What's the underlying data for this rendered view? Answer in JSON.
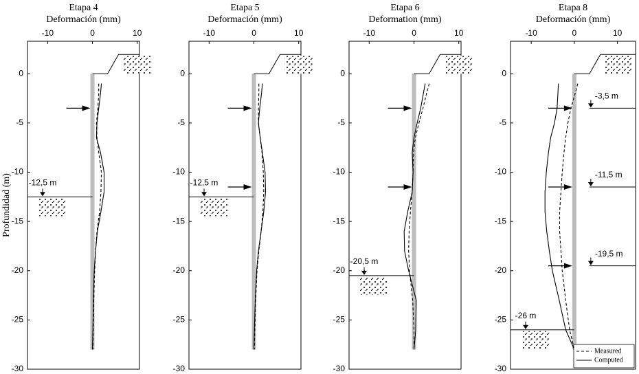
{
  "chart_data": [
    {
      "type": "line",
      "title": "Etapa 4",
      "xlabel": "Deformación (mm)",
      "ylabel": "Profundidad (m)",
      "xlim": [
        -14.5,
        10.5
      ],
      "xticks": [
        -10,
        0,
        10
      ],
      "ylim": [
        -30,
        3.3
      ],
      "yticks": [
        0,
        -5,
        -10,
        -15,
        -20,
        -25,
        -30
      ],
      "wall": [
        0,
        -28
      ],
      "struts": [
        -3.5
      ],
      "excavation": {
        "value": -12.5,
        "label": "-12,5 m"
      },
      "y": [
        -1,
        -2,
        -3.5,
        -5,
        -6.5,
        -8,
        -10,
        -12,
        -14,
        -16,
        -18,
        -20,
        -23,
        -26,
        -28
      ],
      "series": [
        {
          "style": "dashed",
          "color": "#000000",
          "x": [
            1.4,
            1.4,
            1.2,
            0.9,
            1,
            1.4,
            2,
            1.9,
            1.6,
            1,
            0.7,
            0.5,
            0.3,
            0.2,
            0.1
          ]
        },
        {
          "style": "solid",
          "color": "#000000",
          "x": [
            2,
            1.8,
            1.4,
            1,
            0.9,
            1.8,
            2.6,
            2.6,
            1.9,
            1.1,
            0.7,
            0.4,
            0.2,
            0.1,
            0
          ]
        }
      ]
    },
    {
      "type": "line",
      "title": "Etapa 5",
      "xlabel": "Deformación (mm)",
      "xlim": [
        -14.5,
        10.5
      ],
      "xticks": [
        -10,
        0,
        10
      ],
      "ylim": [
        -30,
        3.3
      ],
      "yticks": [
        0,
        -5,
        -10,
        -15,
        -20,
        -25,
        -30
      ],
      "wall": [
        0,
        -28
      ],
      "struts": [
        -3.5,
        -11.5
      ],
      "excavation": {
        "value": -12.5,
        "label": "-12,5 m"
      },
      "y": [
        -1,
        -2,
        -3.5,
        -5,
        -6.5,
        -8,
        -10,
        -12,
        -14,
        -16,
        -18,
        -20,
        -23,
        -26,
        -28
      ],
      "series": [
        {
          "style": "dashed",
          "color": "#000000",
          "x": [
            1.1,
            1.1,
            1,
            1,
            1.4,
            1.8,
            2.1,
            2.2,
            2,
            1.6,
            1.1,
            0.7,
            0.4,
            0.2,
            0.1
          ]
        },
        {
          "style": "solid",
          "color": "#000000",
          "x": [
            1.9,
            1.7,
            1.3,
            1,
            1.4,
            1.9,
            2.5,
            2.6,
            2.2,
            1.6,
            1,
            0.6,
            0.3,
            0.1,
            0
          ]
        }
      ]
    },
    {
      "type": "line",
      "title": "Etapa 6",
      "xlabel": "Deformation (mm)",
      "xlim": [
        -14.5,
        10.5
      ],
      "xticks": [
        -10,
        0,
        10
      ],
      "ylim": [
        -30,
        3.3
      ],
      "yticks": [
        0,
        -5,
        -10,
        -15,
        -20,
        -25,
        -30
      ],
      "wall": [
        0,
        -28
      ],
      "struts": [
        -3.5,
        -11.5
      ],
      "excavation": {
        "value": -20.5,
        "label": "-20,5 m"
      },
      "y": [
        -1,
        -2,
        -3.5,
        -5,
        -6.5,
        -8,
        -10,
        -12,
        -14,
        -16,
        -18,
        -20,
        -23,
        -26,
        -28
      ],
      "series": [
        {
          "style": "dashed",
          "color": "#000000",
          "x": [
            3.4,
            2.8,
            2,
            1.1,
            0.3,
            -0.1,
            -0.2,
            -0.4,
            -0.8,
            -1.1,
            -1.2,
            -1,
            -0.3,
            0,
            0
          ]
        },
        {
          "style": "solid",
          "color": "#000000",
          "x": [
            2.5,
            2.1,
            1.5,
            0.7,
            0,
            -0.4,
            -0.2,
            -0.4,
            -1.4,
            -2.2,
            -2.1,
            -1.2,
            0.5,
            0.4,
            0
          ]
        }
      ]
    },
    {
      "type": "line",
      "title": "Etapa 8",
      "xlabel": "Deformación (mm)",
      "xlim": [
        -14.8,
        14.2
      ],
      "xticks": [
        -10,
        0,
        10
      ],
      "ylim": [
        -30,
        3.3
      ],
      "yticks": [
        0,
        -5,
        -10,
        -15,
        -20,
        -25,
        -30
      ],
      "wall": [
        0,
        -28
      ],
      "struts": [
        -3.5,
        -11.5,
        -19.5
      ],
      "excavation": {
        "value": -26,
        "label": "-26 m"
      },
      "previous_levels": [
        {
          "value": -3.5,
          "label": "-3,5 m"
        },
        {
          "value": -11.5,
          "label": "-11,5 m"
        },
        {
          "value": -19.5,
          "label": "-19,5 m"
        }
      ],
      "legend": "lower right",
      "y": [
        -1,
        -2,
        -3.5,
        -5,
        -6.5,
        -8,
        -10,
        -12,
        -14,
        -16,
        -18,
        -20,
        -23,
        -26,
        -28
      ],
      "series": [
        {
          "name": "Measured",
          "style": "dashed",
          "color": "#000000",
          "x": [
            0.8,
            0.2,
            -0.8,
            -1.5,
            -2,
            -2.4,
            -2.8,
            -3.1,
            -3.4,
            -3.4,
            -3.1,
            -2.8,
            -2,
            -1.1,
            0
          ]
        },
        {
          "name": "Computed",
          "style": "solid",
          "color": "#000000",
          "x": [
            -3.7,
            -3.8,
            -4,
            -4.6,
            -5.5,
            -6,
            -6.5,
            -6.8,
            -6.8,
            -6.4,
            -5.8,
            -5.1,
            -3.5,
            -2,
            0
          ]
        }
      ]
    }
  ]
}
